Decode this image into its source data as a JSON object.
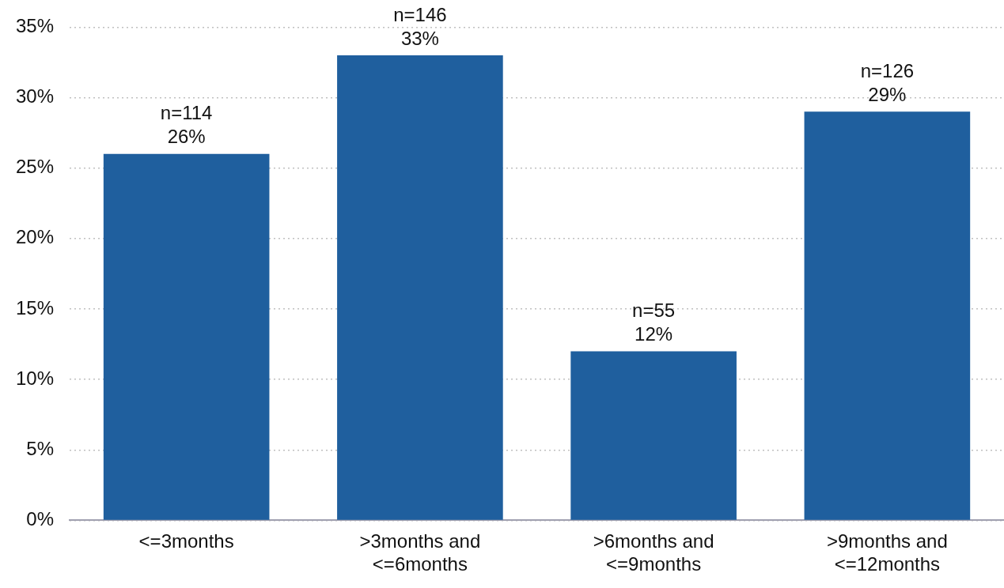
{
  "chart_data": {
    "type": "bar",
    "categories": [
      "<=3months",
      ">3months and <=6months",
      ">6months and <=9months",
      ">9months and <=12months"
    ],
    "values": [
      26,
      33,
      12,
      29
    ],
    "color": "#1f5f9e",
    "value_labels": [
      "n=114\n26%",
      "n=146\n33%",
      "n=55\n12%",
      "n=126\n29%"
    ],
    "ylim": [
      0,
      35
    ],
    "yticks": [
      {
        "value": 0,
        "label": "0%"
      },
      {
        "value": 5,
        "label": "5%"
      },
      {
        "value": 10,
        "label": "10%"
      },
      {
        "value": 15,
        "label": "15%"
      },
      {
        "value": 20,
        "label": "20%"
      },
      {
        "value": 25,
        "label": "25%"
      },
      {
        "value": 30,
        "label": "30%"
      },
      {
        "value": 35,
        "label": "35%"
      }
    ],
    "grid": "y",
    "legend": false
  }
}
